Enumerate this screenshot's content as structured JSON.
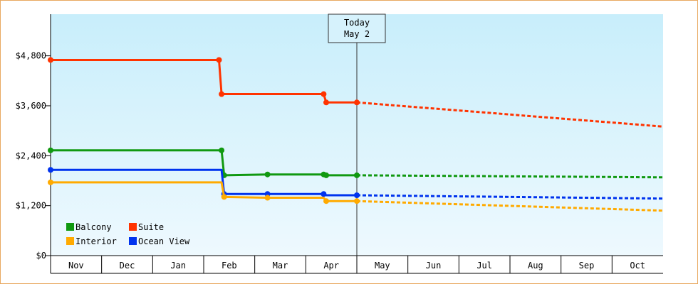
{
  "chart_data": {
    "type": "line",
    "title": "",
    "xlabel": "",
    "ylabel": "",
    "months": [
      "Nov",
      "Dec",
      "Jan",
      "Feb",
      "Mar",
      "Apr",
      "May",
      "Jun",
      "Jul",
      "Aug",
      "Sep",
      "Oct"
    ],
    "ylim": [
      0,
      5800
    ],
    "yticks": [
      0,
      1200,
      2400,
      3600,
      4800
    ],
    "ytick_labels": [
      "$0",
      "$1,200",
      "$2,400",
      "$3,600",
      "$4,800"
    ],
    "grid": false,
    "legend_placement": "bottom-left",
    "today": {
      "line1": "Today",
      "line2": "May 2",
      "month_index": 6.0
    },
    "series": [
      {
        "name": "Suite",
        "color": "#ff3300",
        "history": [
          [
            0.0,
            4700
          ],
          [
            3.3,
            4700
          ],
          [
            3.35,
            3880
          ],
          [
            5.35,
            3880
          ],
          [
            5.4,
            3680
          ],
          [
            6.0,
            3680
          ]
        ],
        "markers": [
          [
            0.0,
            4700
          ],
          [
            3.3,
            4700
          ],
          [
            3.35,
            3880
          ],
          [
            5.35,
            3880
          ],
          [
            5.4,
            3680
          ],
          [
            6.0,
            3680
          ]
        ],
        "forecast": [
          [
            6.0,
            3680
          ],
          [
            12.0,
            3100
          ]
        ]
      },
      {
        "name": "Balcony",
        "color": "#119911",
        "history": [
          [
            0.0,
            2530
          ],
          [
            3.35,
            2530
          ],
          [
            3.4,
            1930
          ],
          [
            4.25,
            1950
          ],
          [
            5.35,
            1950
          ],
          [
            5.4,
            1930
          ],
          [
            6.0,
            1930
          ]
        ],
        "markers": [
          [
            0.0,
            2530
          ],
          [
            3.35,
            2530
          ],
          [
            3.4,
            1930
          ],
          [
            4.25,
            1950
          ],
          [
            5.35,
            1950
          ],
          [
            5.4,
            1930
          ],
          [
            6.0,
            1930
          ]
        ],
        "forecast": [
          [
            6.0,
            1930
          ],
          [
            12.0,
            1880
          ]
        ]
      },
      {
        "name": "Ocean View",
        "color": "#0033ee",
        "history": [
          [
            0.0,
            2060
          ],
          [
            3.35,
            2060
          ],
          [
            3.4,
            1480
          ],
          [
            4.25,
            1480
          ],
          [
            5.35,
            1480
          ],
          [
            5.4,
            1450
          ],
          [
            6.0,
            1450
          ]
        ],
        "markers": [
          [
            0.0,
            2060
          ],
          [
            3.4,
            1480
          ],
          [
            4.25,
            1480
          ],
          [
            5.35,
            1480
          ],
          [
            6.0,
            1450
          ]
        ],
        "forecast": [
          [
            6.0,
            1450
          ],
          [
            12.0,
            1370
          ]
        ]
      },
      {
        "name": "Interior",
        "color": "#ffaa00",
        "history": [
          [
            0.0,
            1760
          ],
          [
            3.35,
            1760
          ],
          [
            3.4,
            1410
          ],
          [
            4.25,
            1390
          ],
          [
            5.35,
            1390
          ],
          [
            5.4,
            1310
          ],
          [
            6.0,
            1310
          ]
        ],
        "markers": [
          [
            0.0,
            1760
          ],
          [
            3.4,
            1410
          ],
          [
            4.25,
            1390
          ],
          [
            5.4,
            1310
          ],
          [
            6.0,
            1310
          ]
        ],
        "forecast": [
          [
            6.0,
            1310
          ],
          [
            12.0,
            1080
          ]
        ]
      }
    ],
    "legend": [
      {
        "name": "Balcony",
        "color": "#119911"
      },
      {
        "name": "Suite",
        "color": "#ff3300"
      },
      {
        "name": "Interior",
        "color": "#ffaa00"
      },
      {
        "name": "Ocean View",
        "color": "#0033ee"
      }
    ]
  }
}
